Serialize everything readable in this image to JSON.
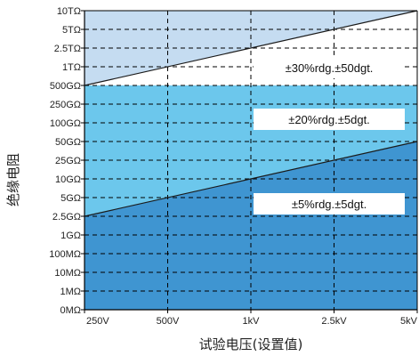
{
  "chart_data": {
    "type": "area",
    "xlabel": "试验电压(设置值)",
    "ylabel": "绝缘电阻",
    "x_ticks": [
      "250V",
      "500V",
      "1kV",
      "2.5kV",
      "5kV"
    ],
    "x_values_V": [
      250,
      500,
      1000,
      2500,
      5000
    ],
    "y_ticks": [
      "10TΩ",
      "5TΩ",
      "2.5TΩ",
      "1TΩ",
      "500GΩ",
      "250GΩ",
      "100GΩ",
      "50GΩ",
      "25GΩ",
      "10GΩ",
      "5GΩ",
      "2.5GΩ",
      "1GΩ",
      "100MΩ",
      "10MΩ",
      "1MΩ",
      "0MΩ"
    ],
    "grid": true,
    "accuracy_zones": [
      {
        "label": "±30%rdg.±50dgt.",
        "color": "#c5dcf1",
        "lower_boundary": {
          "x": [
            "250V",
            "5kV"
          ],
          "y": [
            "500GΩ",
            "10TΩ"
          ]
        },
        "upper_boundary": "10TΩ"
      },
      {
        "label": "±20%rdg.±5dgt.",
        "color": "#6cc7ec",
        "lower_boundary": {
          "x": [
            "250V",
            "5kV"
          ],
          "y": [
            "2.5GΩ",
            "50GΩ"
          ]
        },
        "upper_boundary": "500GΩ"
      },
      {
        "label": "±5%rdg.±5dgt.",
        "color": "#3f95d1",
        "lower_boundary": "0MΩ",
        "upper_boundary": {
          "x": [
            "250V",
            "5kV"
          ],
          "y": [
            "2.5GΩ",
            "50GΩ"
          ]
        }
      }
    ]
  }
}
